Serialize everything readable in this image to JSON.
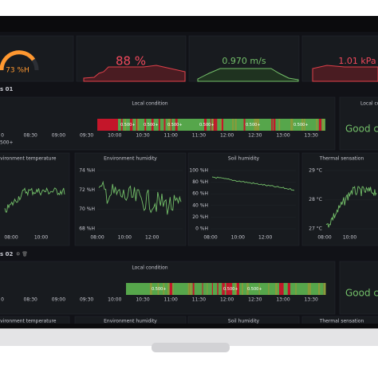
{
  "stats": [
    "73 %H",
    "88 %",
    "0.970 m/s",
    "1.01 kPa"
  ],
  "rows": [
    "s 01",
    "s 02"
  ],
  "local_condition": {
    "title": "Local condition",
    "times": [
      "0",
      "08:30",
      "09:00",
      "09:30",
      "10:00",
      "10:30",
      "11:00",
      "11:30",
      "12:00",
      "12:30",
      "13:00",
      "13:30"
    ],
    "side_label": "500+",
    "segment_labels": [
      "0.500+",
      "0.500+",
      "0.500+",
      "0.500+",
      "0.500+",
      "0.500+"
    ],
    "status_title": "Local co",
    "status": "Good co"
  },
  "local_condition_2": {
    "title": "Local condition",
    "segment_labels": [
      "0.500+",
      "0.500+",
      "0.500+"
    ],
    "status": "Good co"
  },
  "panels": [
    {
      "title": "Environment temperature",
      "xticks": [
        "08:00",
        "10:00"
      ],
      "yticks": []
    },
    {
      "title": "Environment humidity",
      "xticks": [
        "08:00",
        "10:00",
        "12:00"
      ],
      "yticks": [
        "74 %H",
        "72 %H",
        "70 %H",
        "68 %H"
      ]
    },
    {
      "title": "Soil humidity",
      "xticks": [
        "08:00",
        "10:00",
        "12:00"
      ],
      "yticks": [
        "100 %H",
        "80 %H",
        "60 %H",
        "40 %H",
        "20 %H",
        "0 %H"
      ]
    },
    {
      "title": "Thermal sensation",
      "xticks": [
        "08:00",
        "10:00"
      ],
      "yticks": [
        "29 °C",
        "28 °C",
        "27 °C"
      ]
    }
  ],
  "panels_2": [
    "Environment temperature",
    "Environment humidity",
    "Soil humidity",
    "Thermal sensation"
  ]
}
